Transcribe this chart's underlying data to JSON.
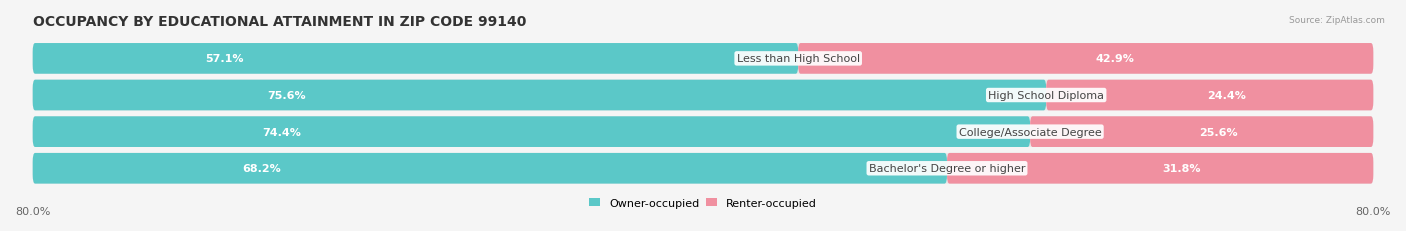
{
  "title": "OCCUPANCY BY EDUCATIONAL ATTAINMENT IN ZIP CODE 99140",
  "source": "Source: ZipAtlas.com",
  "categories": [
    "Less than High School",
    "High School Diploma",
    "College/Associate Degree",
    "Bachelor's Degree or higher"
  ],
  "owner_values": [
    57.1,
    75.6,
    74.4,
    68.2
  ],
  "renter_values": [
    42.9,
    24.4,
    25.6,
    31.8
  ],
  "owner_color": "#5BC8C8",
  "renter_color": "#F090A0",
  "bg_color": "#f5f5f5",
  "bar_bg_color": "#e8e8e8",
  "xlim_left": 0.0,
  "xlim_right": 100.0,
  "x_left_label": "80.0%",
  "x_right_label": "80.0%",
  "title_fontsize": 10,
  "label_fontsize": 8.0,
  "tick_fontsize": 8.0,
  "value_fontsize": 8.0
}
